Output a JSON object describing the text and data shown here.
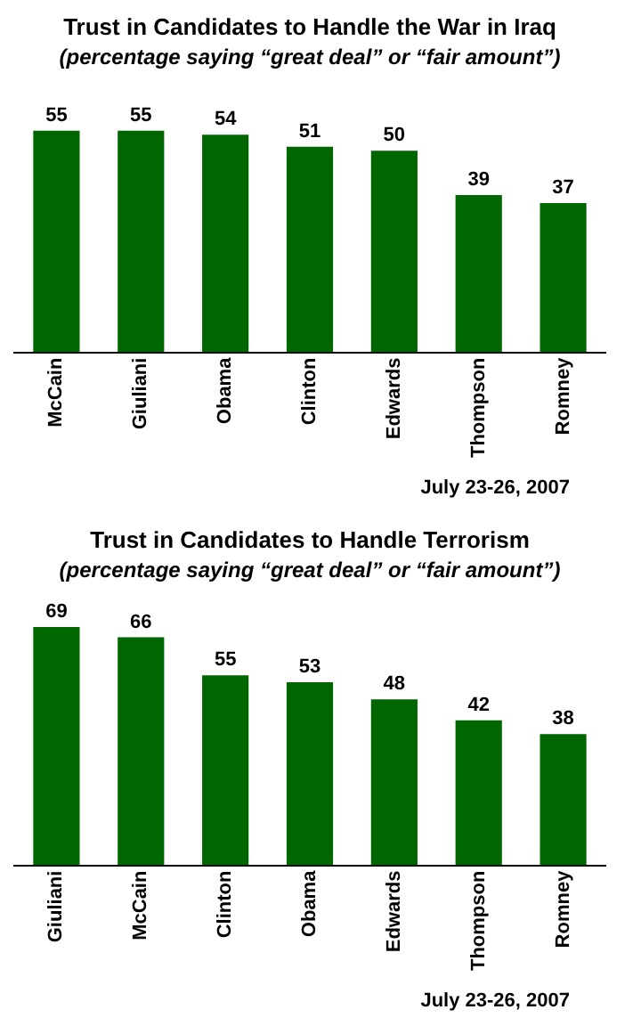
{
  "chart_data": [
    {
      "type": "bar",
      "title": "Trust in Candidates to Handle the War in Iraq",
      "subtitle": "(percentage saying “great deal” or “fair amount”)",
      "categories": [
        "McCain",
        "Giuliani",
        "Obama",
        "Clinton",
        "Edwards",
        "Thompson",
        "Romney"
      ],
      "values": [
        55,
        55,
        54,
        51,
        50,
        39,
        37
      ],
      "color": "#006600",
      "data_labels": true,
      "tick_labels": "x",
      "grid": false,
      "legend": false,
      "annotations": [
        "July 23-26, 2007"
      ]
    },
    {
      "type": "bar",
      "title": "Trust in Candidates to Handle Terrorism",
      "subtitle": "(percentage saying “great deal” or “fair amount”)",
      "categories": [
        "Giuliani",
        "McCain",
        "Clinton",
        "Obama",
        "Edwards",
        "Thompson",
        "Romney"
      ],
      "values": [
        69,
        66,
        55,
        53,
        48,
        42,
        38
      ],
      "color": "#006600",
      "data_labels": true,
      "tick_labels": "x",
      "grid": false,
      "legend": false,
      "annotations": [
        "July 23-26, 2007"
      ]
    }
  ]
}
